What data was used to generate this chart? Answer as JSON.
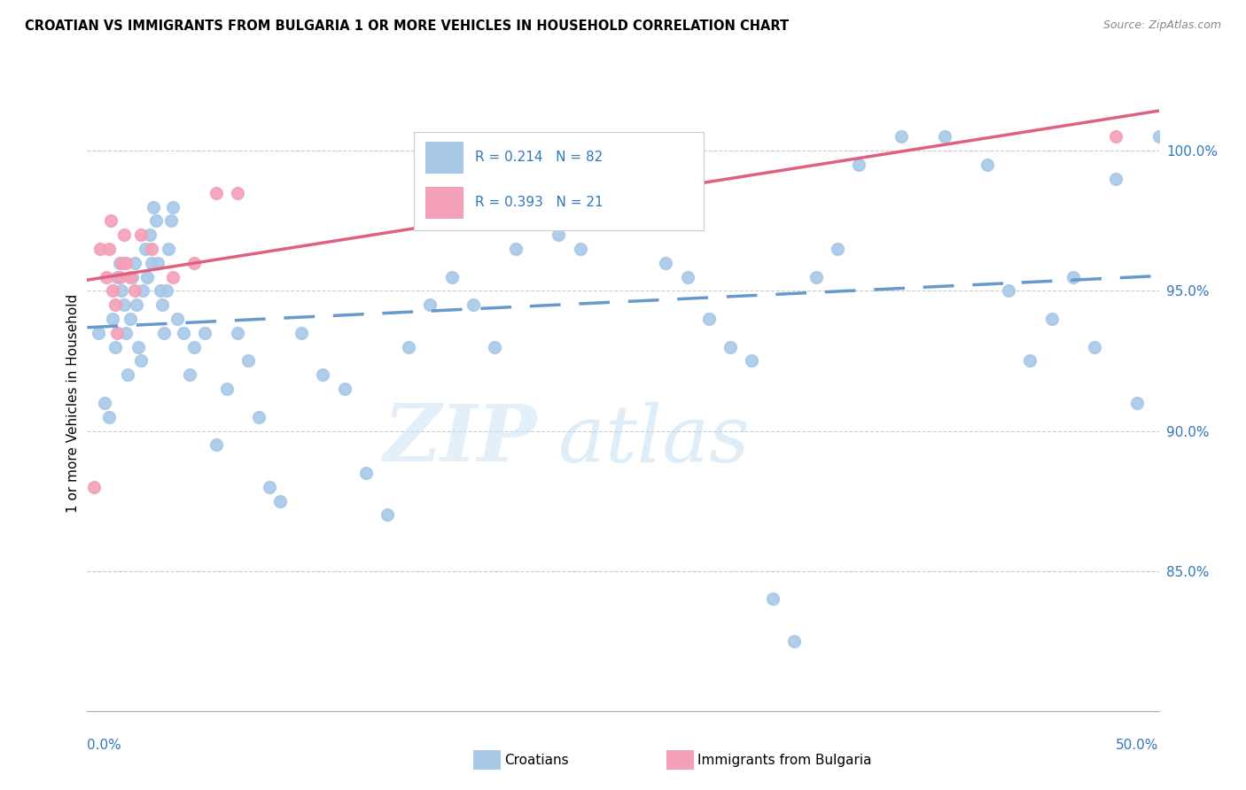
{
  "title": "CROATIAN VS IMMIGRANTS FROM BULGARIA 1 OR MORE VEHICLES IN HOUSEHOLD CORRELATION CHART",
  "source": "Source: ZipAtlas.com",
  "ylabel": "1 or more Vehicles in Household",
  "xmin": 0.0,
  "xmax": 50.0,
  "ymin": 80.0,
  "ymax": 102.0,
  "yticks": [
    85.0,
    90.0,
    95.0,
    100.0
  ],
  "ytick_labels": [
    "85.0%",
    "90.0%",
    "95.0%",
    "100.0%"
  ],
  "watermark_zip": "ZIP",
  "watermark_atlas": "atlas",
  "croatian_color": "#a8c8e8",
  "bulgarian_color": "#f4a0b8",
  "line_color_croatian": "#6699cc",
  "line_color_bulgarian": "#e06080",
  "croatian_x": [
    0.5,
    0.8,
    1.0,
    1.2,
    1.3,
    1.4,
    1.5,
    1.6,
    1.7,
    1.8,
    1.9,
    2.0,
    2.1,
    2.2,
    2.3,
    2.4,
    2.5,
    2.6,
    2.7,
    2.8,
    2.9,
    3.0,
    3.1,
    3.2,
    3.3,
    3.4,
    3.5,
    3.6,
    3.7,
    3.8,
    3.9,
    4.0,
    4.2,
    4.5,
    4.8,
    5.0,
    5.5,
    6.0,
    6.5,
    7.0,
    7.5,
    8.0,
    8.5,
    9.0,
    10.0,
    11.0,
    12.0,
    13.0,
    14.0,
    15.0,
    16.0,
    17.0,
    18.0,
    19.0,
    20.0,
    21.0,
    22.0,
    23.0,
    24.0,
    25.0,
    26.0,
    27.0,
    28.0,
    29.0,
    30.0,
    31.0,
    32.0,
    33.0,
    34.0,
    35.0,
    36.0,
    38.0,
    40.0,
    42.0,
    44.0,
    46.0,
    48.0,
    50.0,
    49.0,
    47.0,
    45.0,
    43.0
  ],
  "croatian_y": [
    93.5,
    91.0,
    90.5,
    94.0,
    93.0,
    95.5,
    96.0,
    95.0,
    94.5,
    93.5,
    92.0,
    94.0,
    95.5,
    96.0,
    94.5,
    93.0,
    92.5,
    95.0,
    96.5,
    95.5,
    97.0,
    96.0,
    98.0,
    97.5,
    96.0,
    95.0,
    94.5,
    93.5,
    95.0,
    96.5,
    97.5,
    98.0,
    94.0,
    93.5,
    92.0,
    93.0,
    93.5,
    89.5,
    91.5,
    93.5,
    92.5,
    90.5,
    88.0,
    87.5,
    93.5,
    92.0,
    91.5,
    88.5,
    87.0,
    93.0,
    94.5,
    95.5,
    94.5,
    93.0,
    96.5,
    97.5,
    97.0,
    96.5,
    98.0,
    99.0,
    97.5,
    96.0,
    95.5,
    94.0,
    93.0,
    92.5,
    84.0,
    82.5,
    95.5,
    96.5,
    99.5,
    100.5,
    100.5,
    99.5,
    92.5,
    95.5,
    99.0,
    100.5,
    91.0,
    93.0,
    94.0,
    95.0
  ],
  "bulgarian_x": [
    0.3,
    0.6,
    0.9,
    1.0,
    1.1,
    1.2,
    1.3,
    1.4,
    1.5,
    1.6,
    1.7,
    1.8,
    2.0,
    2.2,
    2.5,
    3.0,
    4.0,
    5.0,
    6.0,
    7.0,
    48.0
  ],
  "bulgarian_y": [
    88.0,
    96.5,
    95.5,
    96.5,
    97.5,
    95.0,
    94.5,
    93.5,
    95.5,
    96.0,
    97.0,
    96.0,
    95.5,
    95.0,
    97.0,
    96.5,
    95.5,
    96.0,
    98.5,
    98.5,
    100.5
  ]
}
